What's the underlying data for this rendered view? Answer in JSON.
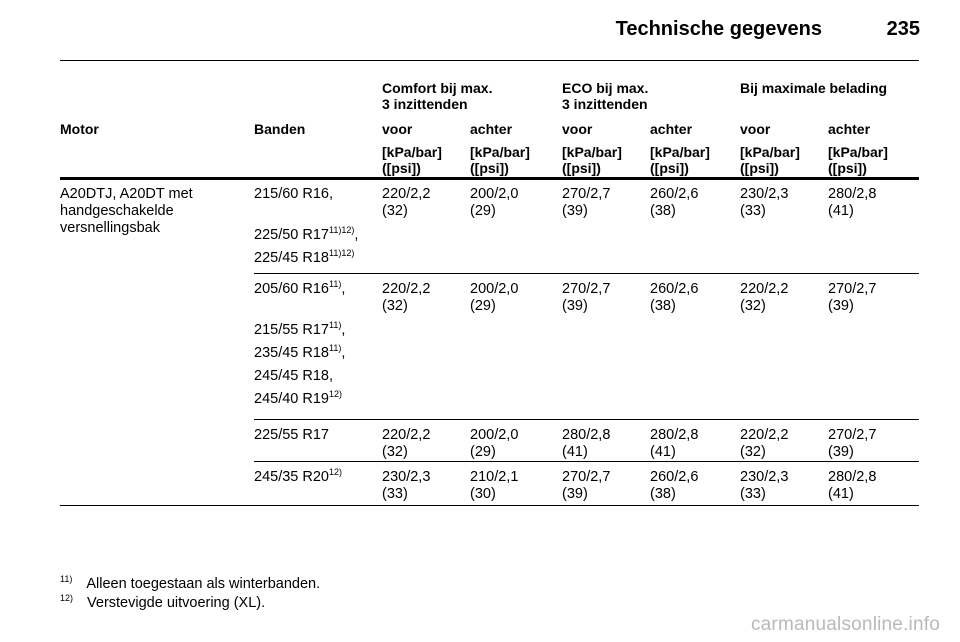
{
  "header": {
    "title": "Technische gegevens",
    "page": "235"
  },
  "groups": [
    "Comfort bij max.\n3 inzittenden",
    "ECO bij max.\n3 inzittenden",
    "Bij maximale belading"
  ],
  "columns": {
    "motor": "Motor",
    "banden": "Banden",
    "voor": "voor",
    "achter": "achter",
    "unit": "[kPa/bar]\n([psi])"
  },
  "engine": "A20DTJ, A20DT met\nhandgeschakelde\nversnellingsbak",
  "rows": [
    {
      "tires": [
        {
          "name": "215/60 R16,",
          "sup": ""
        },
        {
          "name": "225/50 R17",
          "sup": "11)12)",
          "suffix": ","
        },
        {
          "name": "225/45 R18",
          "sup": "11)12)",
          "suffix": ""
        }
      ],
      "values": [
        "220/2,2\n(32)",
        "200/2,0\n(29)",
        "270/2,7\n(39)",
        "260/2,6\n(38)",
        "230/2,3\n(33)",
        "280/2,8\n(41)"
      ]
    },
    {
      "tires": [
        {
          "name": "205/60 R16",
          "sup": "11)",
          "suffix": ","
        },
        {
          "name": "215/55 R17",
          "sup": "11)",
          "suffix": ","
        },
        {
          "name": "235/45 R18",
          "sup": "11)",
          "suffix": ","
        },
        {
          "name": "245/45 R18,",
          "sup": ""
        },
        {
          "name": "245/40 R19",
          "sup": "12)",
          "suffix": ""
        }
      ],
      "values": [
        "220/2,2\n(32)",
        "200/2,0\n(29)",
        "270/2,7\n(39)",
        "260/2,6\n(38)",
        "220/2,2\n(32)",
        "270/2,7\n(39)"
      ]
    },
    {
      "tires": [
        {
          "name": "225/55 R17",
          "sup": ""
        }
      ],
      "values": [
        "220/2,2\n(32)",
        "200/2,0\n(29)",
        "280/2,8\n(41)",
        "280/2,8\n(41)",
        "220/2,2\n(32)",
        "270/2,7\n(39)"
      ]
    },
    {
      "tires": [
        {
          "name": "245/35 R20",
          "sup": "12)",
          "suffix": ""
        }
      ],
      "values": [
        "230/2,3\n(33)",
        "210/2,1\n(30)",
        "270/2,7\n(39)",
        "260/2,6\n(38)",
        "230/2,3\n(33)",
        "280/2,8\n(41)"
      ]
    }
  ],
  "footnotes": [
    {
      "num": "11)",
      "text": "Alleen toegestaan als winterbanden."
    },
    {
      "num": "12)",
      "text": "Verstevigde uitvoering (XL)."
    }
  ],
  "watermark": "carmanualsonline.info"
}
